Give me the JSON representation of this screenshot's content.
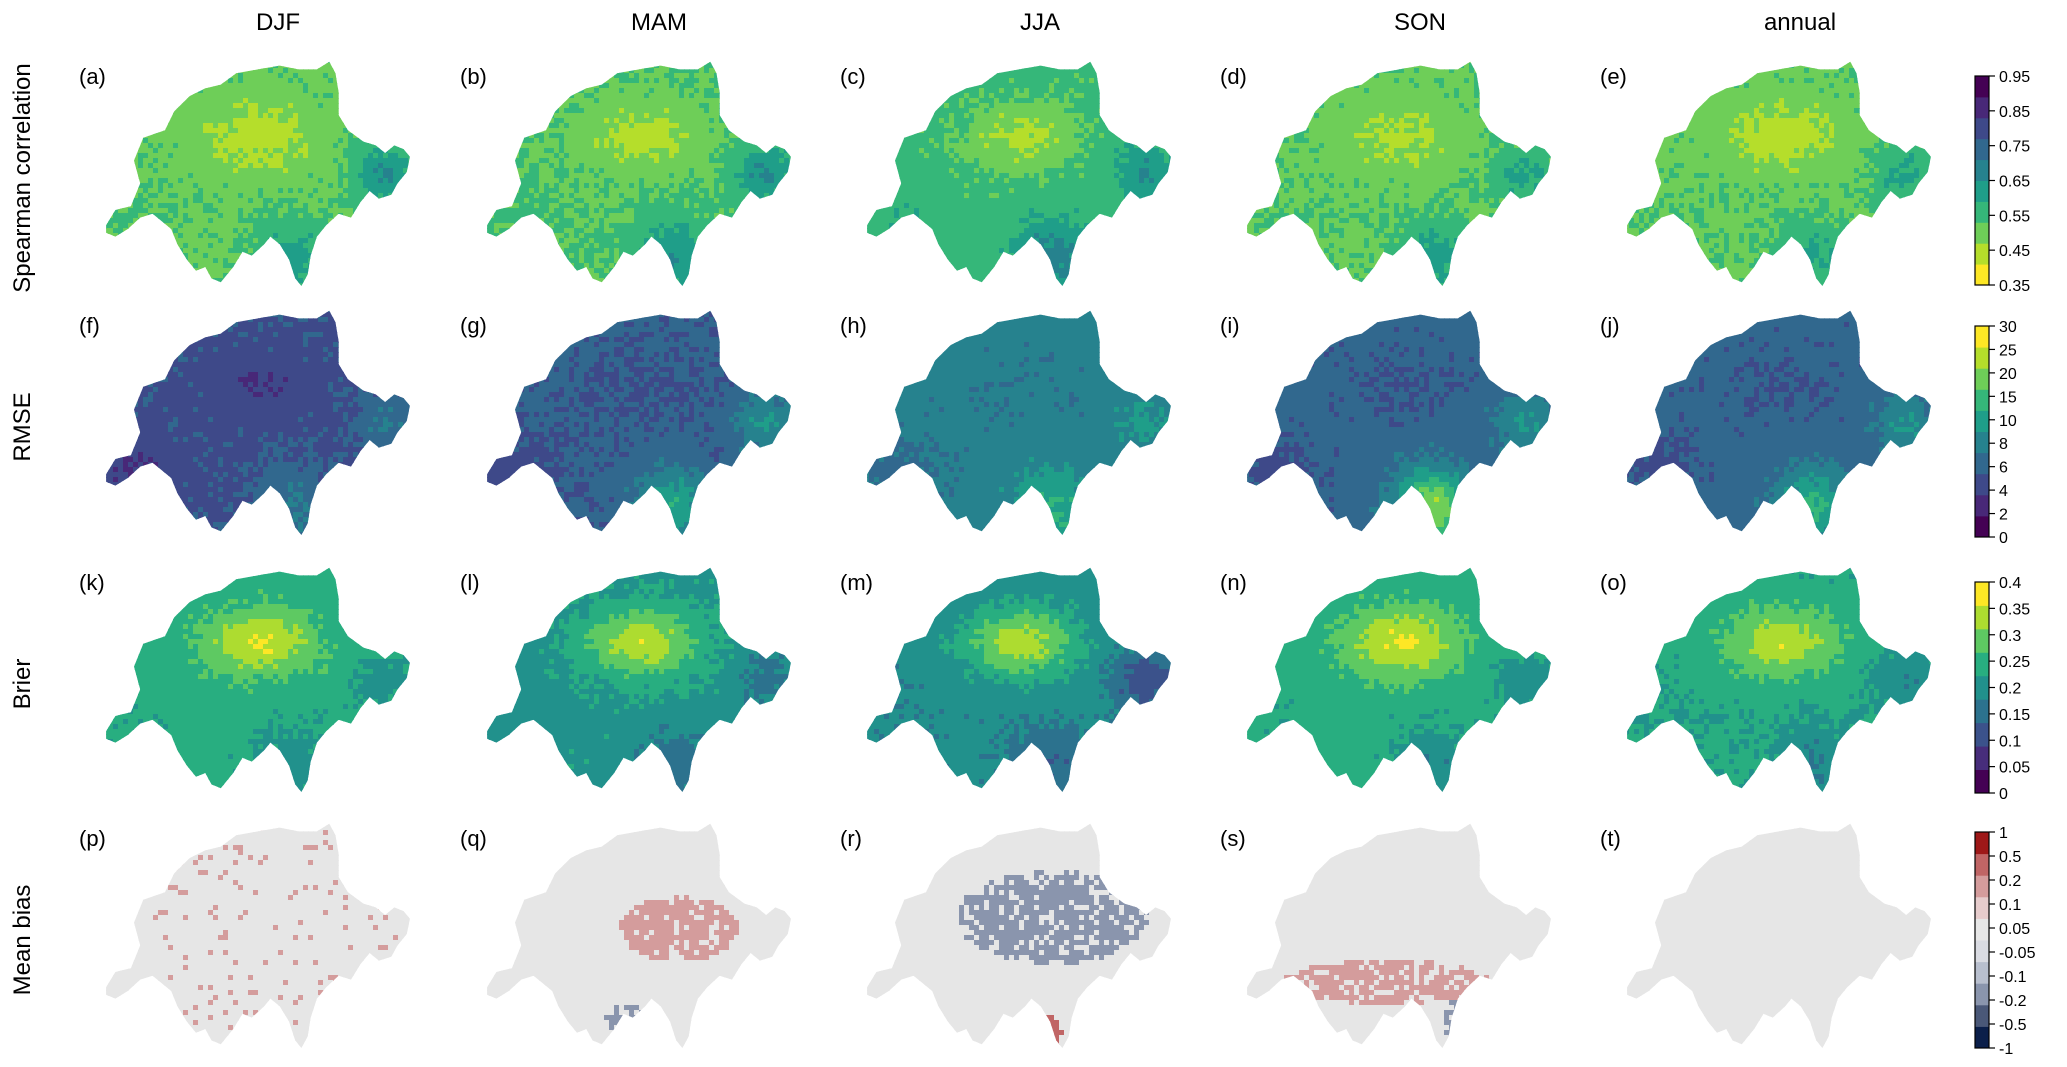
{
  "chart_data": {
    "type": "heatmap",
    "description_columns": [
      "DJF",
      "MAM",
      "JJA",
      "SON",
      "annual"
    ],
    "columns": [
      "DJF",
      "MAM",
      "JJA",
      "SON",
      "annual"
    ],
    "rows": [
      {
        "label": "Spearman correlation",
        "panel_letters": [
          "(a)",
          "(b)",
          "(c)",
          "(d)",
          "(e)"
        ],
        "colorbar": {
          "ticks": [
            "0.95",
            "0.85",
            "0.75",
            "0.65",
            "0.55",
            "0.45",
            "0.35"
          ],
          "range": [
            0.35,
            1.0
          ],
          "colors": [
            "#fde725",
            "#b5de2b",
            "#6ece58",
            "#35b779",
            "#1f9e89",
            "#26828e",
            "#31688e",
            "#3e4989",
            "#482878",
            "#440154"
          ],
          "direction": "low-bottom"
        },
        "panels": [
          {
            "base": 0.72,
            "center": 0.86,
            "south": 0.55,
            "southeast": 0.5,
            "west": 0.68
          },
          {
            "base": 0.7,
            "center": 0.85,
            "south": 0.52,
            "southeast": 0.5,
            "west": 0.66
          },
          {
            "base": 0.66,
            "center": 0.83,
            "south": 0.45,
            "southeast": 0.5,
            "west": 0.62
          },
          {
            "base": 0.72,
            "center": 0.82,
            "south": 0.55,
            "southeast": 0.58,
            "west": 0.7
          },
          {
            "base": 0.72,
            "center": 0.86,
            "south": 0.58,
            "southeast": 0.58,
            "west": 0.7
          }
        ]
      },
      {
        "label": "RMSE",
        "panel_letters": [
          "(f)",
          "(g)",
          "(h)",
          "(i)",
          "(j)"
        ],
        "colorbar": {
          "ticks": [
            "30",
            "25",
            "20",
            "15",
            "10",
            "8",
            "6",
            "4",
            "2",
            "0"
          ],
          "range": [
            0,
            30
          ],
          "colors": [
            "#440154",
            "#482878",
            "#3e4989",
            "#31688e",
            "#26828e",
            "#1f9e89",
            "#35b779",
            "#6ece58",
            "#b5de2b",
            "#fde725"
          ],
          "direction": "low-bottom"
        },
        "panels": [
          {
            "base": 0.28,
            "center": 0.22,
            "south": 0.42,
            "southeast": 0.4,
            "west": 0.2
          },
          {
            "base": 0.32,
            "center": 0.28,
            "south": 0.58,
            "southeast": 0.5,
            "west": 0.24
          },
          {
            "base": 0.44,
            "center": 0.42,
            "south": 0.62,
            "southeast": 0.52,
            "west": 0.36
          },
          {
            "base": 0.34,
            "center": 0.3,
            "south": 0.8,
            "southeast": 0.5,
            "west": 0.26
          },
          {
            "base": 0.34,
            "center": 0.3,
            "south": 0.62,
            "southeast": 0.5,
            "west": 0.26
          }
        ]
      },
      {
        "label": "Brier",
        "panel_letters": [
          "(k)",
          "(l)",
          "(m)",
          "(n)",
          "(o)"
        ],
        "colorbar": {
          "ticks": [
            "0.4",
            "0.35",
            "0.3",
            "0.25",
            "0.2",
            "0.15",
            "0.1",
            "0.05",
            "0"
          ],
          "range": [
            0,
            0.4
          ],
          "colors": [
            "#440154",
            "#472d7b",
            "#3b528b",
            "#2c728e",
            "#21918c",
            "#28ae80",
            "#5ec962",
            "#addc30",
            "#fde725"
          ],
          "direction": "low-bottom"
        },
        "panels": [
          {
            "base": 0.4,
            "center": 0.12,
            "south": 0.52,
            "southeast": 0.5,
            "west": 0.42
          },
          {
            "base": 0.48,
            "center": 0.14,
            "south": 0.62,
            "southeast": 0.6,
            "west": 0.5
          },
          {
            "base": 0.52,
            "center": 0.16,
            "south": 0.66,
            "southeast": 0.75,
            "west": 0.54
          },
          {
            "base": 0.4,
            "center": 0.1,
            "south": 0.54,
            "southeast": 0.52,
            "west": 0.42
          },
          {
            "base": 0.42,
            "center": 0.14,
            "south": 0.56,
            "southeast": 0.55,
            "west": 0.44
          }
        ]
      },
      {
        "label": "Mean bias",
        "panel_letters": [
          "(p)",
          "(q)",
          "(r)",
          "(s)",
          "(t)"
        ],
        "colorbar": {
          "ticks": [
            "1",
            "0.5",
            "0.2",
            "0.1",
            "0.05",
            "-0.05",
            "-0.1",
            "-0.2",
            "-0.5",
            "-1"
          ],
          "range": [
            -1,
            1
          ],
          "colors": [
            "#0b1f4a",
            "#4a5878",
            "#8a95ad",
            "#b8bfce",
            "#d9dbe2",
            "#e6e6e6",
            "#e6cccc",
            "#d49c9c",
            "#c06565",
            "#9e1818"
          ],
          "direction": "low-bottom"
        },
        "panels": [
          {
            "base": 0.5,
            "center": 0.5,
            "south": 0.5,
            "southeast": 0.5,
            "west": 0.58,
            "patches": "sparse-red"
          },
          {
            "base": 0.5,
            "center": 0.62,
            "south": 0.42,
            "southeast": 0.55,
            "west": 0.52,
            "patches": "red-center"
          },
          {
            "base": 0.5,
            "center": 0.38,
            "south": 0.6,
            "southeast": 0.45,
            "west": 0.48,
            "patches": "blue-north"
          },
          {
            "base": 0.5,
            "center": 0.58,
            "south": 0.36,
            "southeast": 0.6,
            "west": 0.58,
            "patches": "red-band"
          },
          {
            "base": 0.5,
            "center": 0.5,
            "south": 0.5,
            "southeast": 0.5,
            "west": 0.5,
            "patches": "none"
          }
        ]
      }
    ]
  }
}
